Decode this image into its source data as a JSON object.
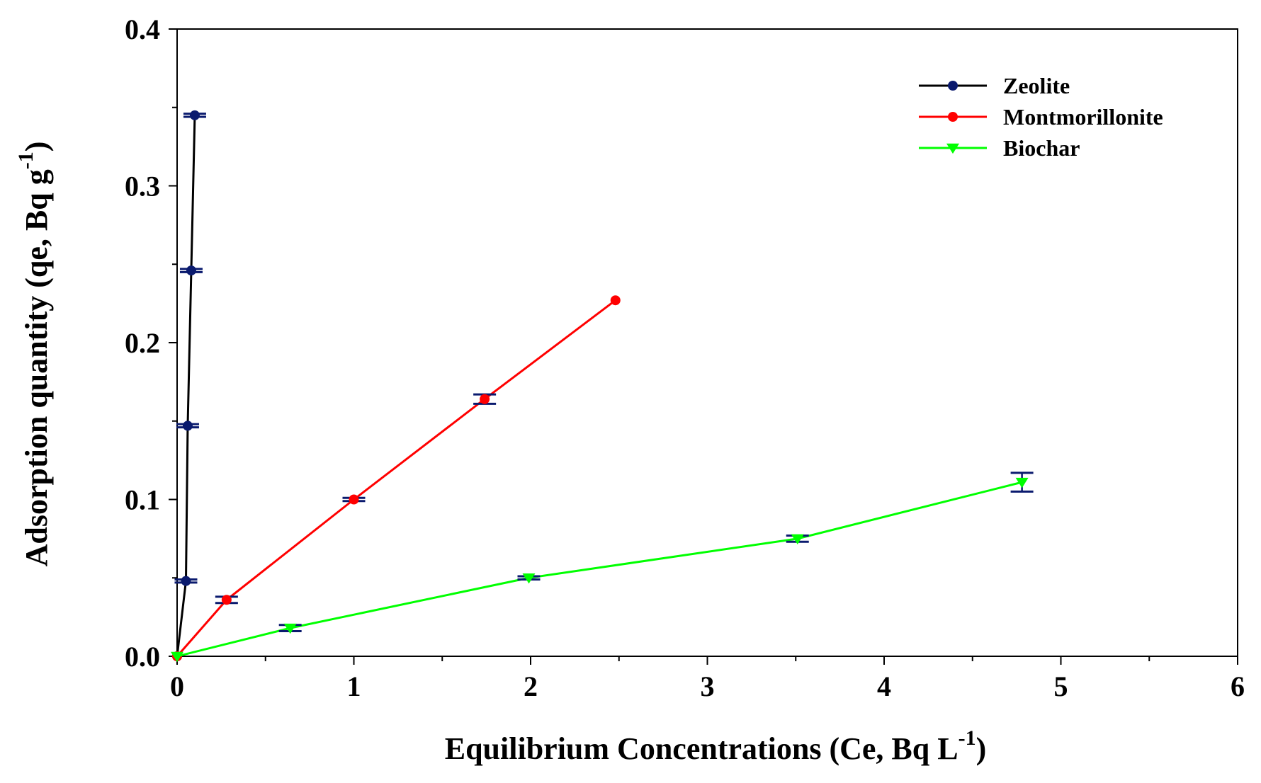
{
  "chart_data": {
    "type": "line",
    "title": "",
    "xlabel": {
      "main": "Equilibrium Concentrations (Ce, Bq L",
      "sup": "-1",
      "close": ")"
    },
    "ylabel": {
      "main": "Adsorption quantity (qe, Bq g",
      "sup": "-1",
      "close": ")"
    },
    "xlim": [
      0,
      6
    ],
    "ylim": [
      0,
      0.4
    ],
    "x_ticks": [
      "0",
      "1",
      "2",
      "3",
      "4",
      "5",
      "6"
    ],
    "y_ticks": [
      "0.0",
      "0.1",
      "0.2",
      "0.3",
      "0.4"
    ],
    "grid": false,
    "legend_position": "top-right",
    "series": [
      {
        "name": "Zeolite",
        "color": "#000000",
        "marker_color": "#0a1a6e",
        "marker": "circle",
        "x": [
          0,
          0.05,
          0.06,
          0.08,
          0.1
        ],
        "y": [
          0,
          0.048,
          0.147,
          0.246,
          0.345
        ],
        "err": [
          0,
          0.001,
          0.001,
          0.001,
          0.001
        ]
      },
      {
        "name": "Montmorillonite",
        "color": "#ff0000",
        "marker_color": "#ff0000",
        "marker": "circle",
        "x": [
          0,
          0.28,
          1.0,
          1.74,
          2.48
        ],
        "y": [
          0,
          0.036,
          0.1,
          0.164,
          0.227
        ],
        "err": [
          0,
          0.002,
          0.001,
          0.003,
          0
        ]
      },
      {
        "name": "Biochar",
        "color": "#00ff00",
        "marker_color": "#00ff00",
        "marker": "triangle-down",
        "x": [
          0,
          0.64,
          1.99,
          3.51,
          4.78
        ],
        "y": [
          0,
          0.018,
          0.05,
          0.075,
          0.111
        ],
        "err": [
          0,
          0.002,
          0.001,
          0.002,
          0.006
        ]
      }
    ],
    "error_bar_color": "#0a1a6e"
  }
}
